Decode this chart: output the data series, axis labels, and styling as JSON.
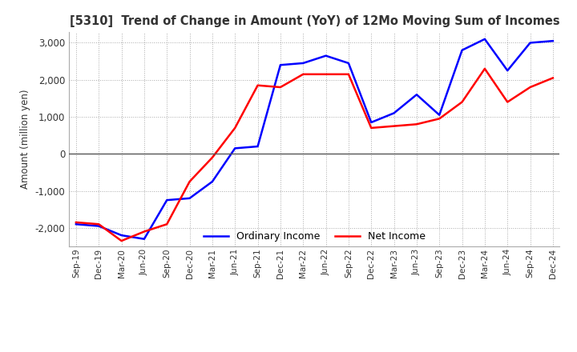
{
  "title": "[5310]  Trend of Change in Amount (YoY) of 12Mo Moving Sum of Incomes",
  "ylabel": "Amount (million yen)",
  "ylim": [
    -2500,
    3300
  ],
  "yticks": [
    -2000,
    -1000,
    0,
    1000,
    2000,
    3000
  ],
  "x_labels": [
    "Sep-19",
    "Dec-19",
    "Mar-20",
    "Jun-20",
    "Sep-20",
    "Dec-20",
    "Mar-21",
    "Jun-21",
    "Sep-21",
    "Dec-21",
    "Mar-22",
    "Jun-22",
    "Sep-22",
    "Dec-22",
    "Mar-23",
    "Jun-23",
    "Sep-23",
    "Dec-23",
    "Mar-24",
    "Jun-24",
    "Sep-24",
    "Dec-24"
  ],
  "ordinary_income": [
    -1900,
    -1950,
    -2200,
    -2300,
    -1250,
    -1200,
    -750,
    150,
    200,
    2400,
    2450,
    2650,
    2450,
    850,
    1100,
    1600,
    1050,
    2800,
    3100,
    2250,
    3000,
    3050
  ],
  "net_income": [
    -1850,
    -1900,
    -2350,
    -2100,
    -1900,
    -750,
    -100,
    700,
    1850,
    1800,
    2150,
    2150,
    2150,
    700,
    750,
    800,
    950,
    1400,
    2300,
    1400,
    1800,
    2050
  ],
  "ordinary_color": "#0000ff",
  "net_color": "#ff0000",
  "line_width": 1.8,
  "legend_ordinary": "Ordinary Income",
  "legend_net": "Net Income",
  "background_color": "#ffffff",
  "grid_color": "#aaaaaa"
}
